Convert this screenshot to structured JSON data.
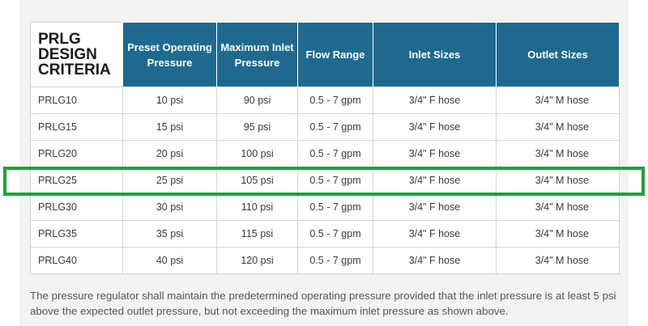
{
  "table": {
    "title": "PRLG DESIGN CRITERIA",
    "headers": [
      "Preset Operating Pressure",
      "Maximum Inlet Pressure",
      "Flow Range",
      "Inlet Sizes",
      "Outlet Sizes"
    ],
    "rows": [
      {
        "model": "PRLG10",
        "preset": "10 psi",
        "max_inlet": "90 psi",
        "flow": "0.5 - 7 gpm",
        "inlet": "3/4\" F hose",
        "outlet": "3/4\" M hose"
      },
      {
        "model": "PRLG15",
        "preset": "15 psi",
        "max_inlet": "95 psi",
        "flow": "0.5 - 7 gpm",
        "inlet": "3/4\" F hose",
        "outlet": "3/4\" M hose"
      },
      {
        "model": "PRLG20",
        "preset": "20 psi",
        "max_inlet": "100 psi",
        "flow": "0.5 - 7 gpm",
        "inlet": "3/4\" F hose",
        "outlet": "3/4\" M hose"
      },
      {
        "model": "PRLG25",
        "preset": "25 psi",
        "max_inlet": "105 psi",
        "flow": "0.5 - 7 gpm",
        "inlet": "3/4\" F hose",
        "outlet": "3/4\" M hose"
      },
      {
        "model": "PRLG30",
        "preset": "30 psi",
        "max_inlet": "110 psi",
        "flow": "0.5 - 7 gpm",
        "inlet": "3/4\" F hose",
        "outlet": "3/4\" M hose"
      },
      {
        "model": "PRLG35",
        "preset": "35 psi",
        "max_inlet": "115 psi",
        "flow": "0.5 - 7 gpm",
        "inlet": "3/4\" F hose",
        "outlet": "3/4\" M hose"
      },
      {
        "model": "PRLG40",
        "preset": "40 psi",
        "max_inlet": "120 psi",
        "flow": "0.5 - 7 gpm",
        "inlet": "3/4\" F hose",
        "outlet": "3/4\" M hose"
      }
    ],
    "highlighted_row": "PRLG25"
  },
  "note": "The pressure regulator shall maintain the predetermined operating pressure provided that the inlet pressure is at least 5 psi above the expected outlet pressure, but not exceeding the maximum inlet pressure as shown above.",
  "colors": {
    "header_bg": "#1e6a8e",
    "highlight": "#1fa03f"
  }
}
